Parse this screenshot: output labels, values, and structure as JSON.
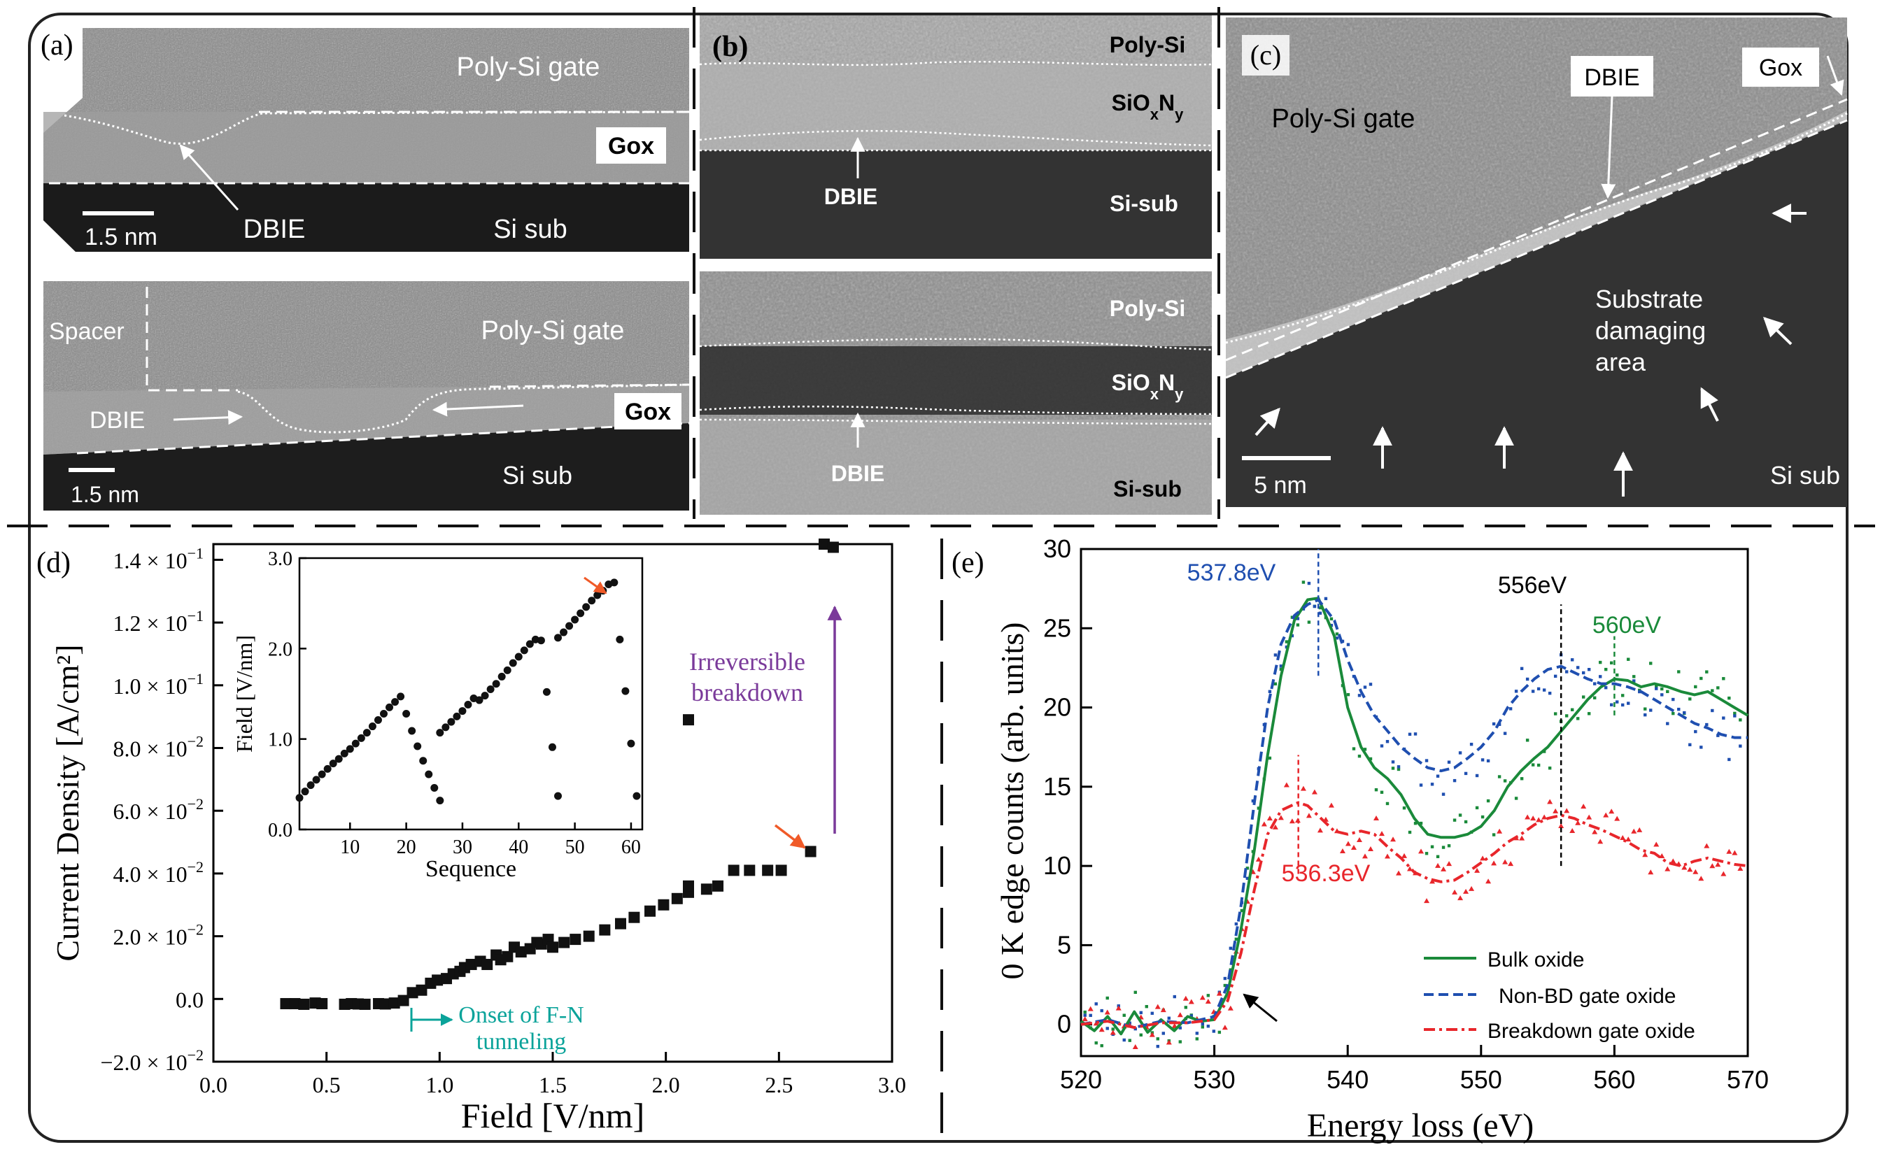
{
  "panels": {
    "a": {
      "label": "(a)",
      "top": {
        "gate": "Poly-Si gate",
        "gox": "Gox",
        "dbie": "DBIE",
        "sub": "Si sub",
        "scale": "1.5 nm"
      },
      "bottom": {
        "spacer": "Spacer",
        "gate": "Poly-Si gate",
        "gox": "Gox",
        "dbie": "DBIE",
        "sub": "Si sub",
        "scale": "1.5 nm"
      }
    },
    "b": {
      "label": "(b)",
      "top": {
        "poly": "Poly-Si",
        "sio_base": "SiO",
        "sio_x": "x",
        "sio_n": "N",
        "sio_y": "y",
        "dbie": "DBIE",
        "sub": "Si-sub"
      },
      "bottom": {
        "poly": "Poly-Si",
        "sio_base": "SiO",
        "sio_x": "x",
        "sio_n": "N",
        "sio_y": "y",
        "dbie": "DBIE",
        "sub": "Si-sub"
      }
    },
    "c": {
      "label": "(c)",
      "gate": "Poly-Si gate",
      "dbie": "DBIE",
      "gox": "Gox",
      "damage": [
        "Substrate",
        "damaging",
        "area"
      ],
      "scale": "5 nm",
      "sub": "Si sub"
    },
    "d": {
      "label": "(d)",
      "annotation_onset": [
        "Onset of F-N",
        "tunneling"
      ],
      "annotation_breakdown": [
        "Irreversible",
        "breakdown"
      ],
      "ytick_labels": [
        {
          "m": "−2.0",
          "e": "−2"
        },
        {
          "m": "0.0",
          "e": ""
        },
        {
          "m": "2.0",
          "e": "−2"
        },
        {
          "m": "4.0",
          "e": "−2"
        },
        {
          "m": "6.0",
          "e": "−2"
        },
        {
          "m": "8.0",
          "e": "−2"
        },
        {
          "m": "1.0",
          "e": "−1"
        },
        {
          "m": "1.2",
          "e": "−1"
        },
        {
          "m": "1.4",
          "e": "−1"
        }
      ]
    },
    "e": {
      "label": "(e)",
      "peak_labels": [
        "537.8eV",
        "556eV",
        "560eV",
        "536.3eV"
      ]
    }
  },
  "colors": {
    "bulk": "#1a8a3a",
    "non_bd": "#1f4fb0",
    "breakdown": "#e8262b",
    "onset": "#0aa39a",
    "irreversible": "#7a3a9a",
    "arrow_red": "#f05a28"
  },
  "chart_data": [
    {
      "id": "d-main",
      "type": "scatter",
      "xlabel": "Field [V/nm]",
      "ylabel": "Current Density [A/cm²]",
      "xlim": [
        0.0,
        3.0
      ],
      "ylim": [
        -0.02,
        0.145
      ],
      "xticks": [
        "0.0",
        "0.5",
        "1.0",
        "1.5",
        "2.0",
        "2.5",
        "3.0"
      ],
      "yticks": [
        -0.02,
        0.0,
        0.02,
        0.04,
        0.06,
        0.08,
        0.1,
        0.12,
        0.14
      ],
      "points": [
        [
          0.32,
          -0.0015
        ],
        [
          0.36,
          -0.0015
        ],
        [
          0.4,
          -0.0017
        ],
        [
          0.45,
          -0.0013
        ],
        [
          0.48,
          -0.0015
        ],
        [
          0.58,
          -0.0017
        ],
        [
          0.61,
          -0.0015
        ],
        [
          0.64,
          -0.0016
        ],
        [
          0.67,
          -0.0017
        ],
        [
          0.73,
          -0.0015
        ],
        [
          0.76,
          -0.0016
        ],
        [
          0.8,
          -0.0013
        ],
        [
          0.84,
          -0.0005
        ],
        [
          0.88,
          0.002
        ],
        [
          0.92,
          0.0028
        ],
        [
          0.96,
          0.005
        ],
        [
          0.99,
          0.006
        ],
        [
          1.03,
          0.0065
        ],
        [
          1.06,
          0.008
        ],
        [
          1.09,
          0.0088
        ],
        [
          1.11,
          0.01
        ],
        [
          1.14,
          0.011
        ],
        [
          1.18,
          0.012
        ],
        [
          1.21,
          0.011
        ],
        [
          1.25,
          0.014
        ],
        [
          1.27,
          0.0125
        ],
        [
          1.3,
          0.0135
        ],
        [
          1.33,
          0.0165
        ],
        [
          1.36,
          0.015
        ],
        [
          1.4,
          0.016
        ],
        [
          1.43,
          0.018
        ],
        [
          1.45,
          0.0175
        ],
        [
          1.48,
          0.019
        ],
        [
          1.5,
          0.0165
        ],
        [
          1.55,
          0.018
        ],
        [
          1.6,
          0.019
        ],
        [
          1.66,
          0.02
        ],
        [
          1.73,
          0.022
        ],
        [
          1.8,
          0.024
        ],
        [
          1.86,
          0.026
        ],
        [
          1.93,
          0.028
        ],
        [
          1.99,
          0.03
        ],
        [
          2.05,
          0.032
        ],
        [
          2.1,
          0.034
        ],
        [
          2.1,
          0.036
        ],
        [
          2.18,
          0.035
        ],
        [
          2.23,
          0.036
        ],
        [
          2.3,
          0.041
        ],
        [
          2.37,
          0.041
        ],
        [
          2.45,
          0.041
        ],
        [
          2.51,
          0.041
        ],
        [
          2.64,
          0.047
        ],
        [
          2.1,
          0.089
        ],
        [
          2.7,
          0.145
        ],
        [
          2.74,
          0.144
        ]
      ],
      "inset": {
        "type": "scatter",
        "xlabel": "Sequence",
        "ylabel": "Field [V/nm]",
        "xlim": [
          1,
          62
        ],
        "ylim": [
          0.0,
          3.0
        ],
        "xticks": [
          10,
          20,
          30,
          40,
          50,
          60
        ],
        "yticks": [
          "0.0",
          "1.0",
          "2.0",
          "3.0"
        ],
        "points": [
          [
            1,
            0.35
          ],
          [
            2,
            0.42
          ],
          [
            3,
            0.49
          ],
          [
            4,
            0.55
          ],
          [
            5,
            0.61
          ],
          [
            6,
            0.67
          ],
          [
            7,
            0.73
          ],
          [
            8,
            0.78
          ],
          [
            9,
            0.84
          ],
          [
            10,
            0.89
          ],
          [
            11,
            0.95
          ],
          [
            12,
            1.01
          ],
          [
            13,
            1.07
          ],
          [
            14,
            1.14
          ],
          [
            15,
            1.21
          ],
          [
            16,
            1.28
          ],
          [
            17,
            1.35
          ],
          [
            18,
            1.41
          ],
          [
            19,
            1.47
          ],
          [
            20,
            1.28
          ],
          [
            21,
            1.09
          ],
          [
            22,
            0.92
          ],
          [
            23,
            0.76
          ],
          [
            24,
            0.61
          ],
          [
            25,
            0.46
          ],
          [
            26,
            0.32
          ],
          [
            26,
            1.07
          ],
          [
            27,
            1.13
          ],
          [
            28,
            1.19
          ],
          [
            29,
            1.25
          ],
          [
            30,
            1.31
          ],
          [
            31,
            1.38
          ],
          [
            32,
            1.45
          ],
          [
            33,
            1.43
          ],
          [
            34,
            1.48
          ],
          [
            35,
            1.55
          ],
          [
            36,
            1.61
          ],
          [
            37,
            1.69
          ],
          [
            38,
            1.76
          ],
          [
            39,
            1.84
          ],
          [
            40,
            1.91
          ],
          [
            41,
            1.98
          ],
          [
            42,
            2.05
          ],
          [
            43,
            2.1
          ],
          [
            44,
            2.09
          ],
          [
            45,
            1.52
          ],
          [
            46,
            0.91
          ],
          [
            47,
            0.37
          ],
          [
            47,
            2.12
          ],
          [
            48,
            2.18
          ],
          [
            49,
            2.25
          ],
          [
            50,
            2.32
          ],
          [
            51,
            2.39
          ],
          [
            52,
            2.46
          ],
          [
            53,
            2.53
          ],
          [
            54,
            2.59
          ],
          [
            55,
            2.64
          ],
          [
            56,
            2.71
          ],
          [
            57,
            2.73
          ],
          [
            58,
            2.1
          ],
          [
            59,
            1.53
          ],
          [
            60,
            0.95
          ],
          [
            61,
            0.37
          ]
        ]
      }
    },
    {
      "id": "e-main",
      "type": "line",
      "xlabel": "Energy loss (eV)",
      "ylabel": "0 K edge counts (arb. units)",
      "xlim": [
        520,
        570
      ],
      "ylim": [
        -2,
        30
      ],
      "xticks": [
        520,
        530,
        540,
        550,
        560,
        570
      ],
      "yticks": [
        0,
        5,
        10,
        15,
        20,
        25,
        30
      ],
      "series": [
        {
          "name": "Bulk oxide",
          "style": "solid",
          "x": [
            520,
            521,
            522,
            523,
            524,
            525,
            526,
            527,
            528,
            529,
            530,
            531,
            532,
            533,
            534,
            535,
            536,
            537,
            537.8,
            539,
            540,
            541,
            542,
            543,
            544,
            545,
            546,
            547,
            548,
            549,
            550,
            551,
            552,
            553,
            554,
            555,
            556,
            557,
            558,
            559,
            560,
            561,
            562,
            563,
            564,
            565,
            566,
            567,
            568,
            569,
            570
          ],
          "y": [
            0.2,
            -0.4,
            0.5,
            -0.6,
            0.8,
            -0.5,
            0.3,
            -0.4,
            0.5,
            0.2,
            0.3,
            2.0,
            6.0,
            11.0,
            17.0,
            22.0,
            25.5,
            26.8,
            26.9,
            24.5,
            20.0,
            17.5,
            16.2,
            15.5,
            14.5,
            13.0,
            12.0,
            11.8,
            11.8,
            12.0,
            12.5,
            13.5,
            15.0,
            16.0,
            16.8,
            17.5,
            18.5,
            19.5,
            20.5,
            21.3,
            21.8,
            21.7,
            21.3,
            21.5,
            21.3,
            21.0,
            20.8,
            21.0,
            20.5,
            20.0,
            19.5
          ]
        },
        {
          "name": "Non-BD gate oxide",
          "style": "dashed",
          "x": [
            520,
            522,
            524,
            526,
            528,
            530,
            531,
            532,
            533,
            534,
            535,
            536,
            537,
            537.8,
            539,
            540,
            541,
            542,
            543,
            544,
            545,
            546,
            547,
            548,
            549,
            550,
            551,
            552,
            553,
            554,
            555,
            556,
            557,
            558,
            559,
            560,
            561,
            562,
            563,
            564,
            565,
            566,
            567,
            568,
            569,
            570
          ],
          "y": [
            0,
            0.3,
            -0.2,
            0.2,
            0.1,
            0.5,
            2.5,
            7.5,
            14.0,
            20.0,
            24.0,
            25.8,
            26.5,
            26.8,
            25.5,
            23.0,
            21.0,
            19.5,
            18.5,
            17.5,
            16.8,
            16.2,
            16.0,
            16.2,
            16.8,
            17.5,
            18.5,
            20.0,
            21.0,
            21.8,
            22.4,
            22.6,
            22.2,
            21.8,
            21.5,
            21.5,
            21.3,
            21.0,
            20.5,
            20.0,
            19.5,
            19.0,
            18.7,
            18.3,
            18.1,
            18.1
          ]
        },
        {
          "name": "Breakdown gate oxide",
          "style": "dashdot",
          "x": [
            520,
            522,
            524,
            526,
            528,
            530,
            531,
            532,
            533,
            534,
            535,
            536,
            536.3,
            537,
            538,
            539,
            540,
            541,
            542,
            543,
            544,
            545,
            546,
            547,
            548,
            549,
            550,
            551,
            552,
            553,
            554,
            555,
            556,
            557,
            558,
            559,
            560,
            561,
            562,
            563,
            564,
            565,
            566,
            567,
            568,
            569,
            570
          ],
          "y": [
            0,
            0.2,
            -0.2,
            0.1,
            0.1,
            0.3,
            1.5,
            4.5,
            8.5,
            12.0,
            13.5,
            13.9,
            14.0,
            13.8,
            13.0,
            12.2,
            12.0,
            12.2,
            12.0,
            11.2,
            10.5,
            9.6,
            9.2,
            9.0,
            9.1,
            9.6,
            10.2,
            10.8,
            11.5,
            12.0,
            12.6,
            13.0,
            13.2,
            13.0,
            12.6,
            12.3,
            11.9,
            11.5,
            11.0,
            10.8,
            10.2,
            10.0,
            10.3,
            10.5,
            10.3,
            10.1,
            10.0
          ]
        }
      ],
      "markers": [
        {
          "x": 537.8,
          "color": "non_bd"
        },
        {
          "x": 556,
          "color": "black"
        },
        {
          "x": 560,
          "color": "bulk"
        },
        {
          "x": 536.3,
          "color": "breakdown"
        }
      ]
    }
  ]
}
